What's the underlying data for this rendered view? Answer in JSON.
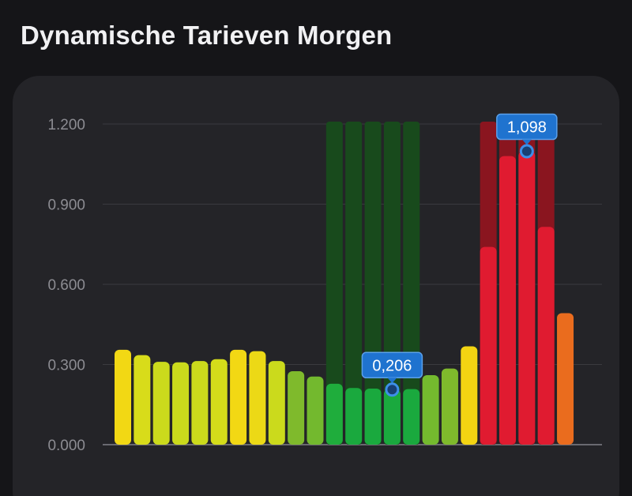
{
  "header": {
    "title": "Dynamische Tarieven Morgen"
  },
  "chart_data": {
    "type": "bar",
    "title": "",
    "xlabel": "",
    "ylabel": "",
    "ylim": [
      0,
      1.2
    ],
    "grid": true,
    "y_ticks": [
      {
        "value": 0,
        "label": "0.000"
      },
      {
        "value": 0.3,
        "label": "0.300"
      },
      {
        "value": 0.6,
        "label": "0.600"
      },
      {
        "value": 0.9,
        "label": "0.900"
      },
      {
        "value": 1.2,
        "label": "1.200"
      }
    ],
    "values": [
      0.355,
      0.335,
      0.31,
      0.308,
      0.313,
      0.32,
      0.355,
      0.35,
      0.313,
      0.275,
      0.255,
      0.228,
      0.212,
      0.21,
      0.206,
      0.208,
      0.26,
      0.285,
      0.368,
      0.74,
      1.08,
      1.098,
      0.815,
      0.492
    ],
    "colors": [
      "#f2d814",
      "#d8dc1a",
      "#cbda1c",
      "#cbda1c",
      "#cbda1c",
      "#d4dc1a",
      "#f2d814",
      "#ecd916",
      "#cbda1c",
      "#7fba2c",
      "#73b92e",
      "#1fad3c",
      "#1aa93e",
      "#1aa93e",
      "#1aa93e",
      "#1aa93e",
      "#74ba2e",
      "#7fba2c",
      "#f3d412",
      "#e01b30",
      "#e01b30",
      "#e01b30",
      "#e01b30",
      "#ea6c1e"
    ],
    "highlight_low": {
      "start_index": 11,
      "end_index": 15,
      "color": "#184a1c"
    },
    "highlight_high": {
      "start_index": 19,
      "end_index": 22,
      "color": "#8a151f"
    },
    "markers": [
      {
        "index": 14,
        "value": 0.206,
        "label": "0,206"
      },
      {
        "index": 21,
        "value": 1.098,
        "label": "1,098"
      }
    ]
  }
}
